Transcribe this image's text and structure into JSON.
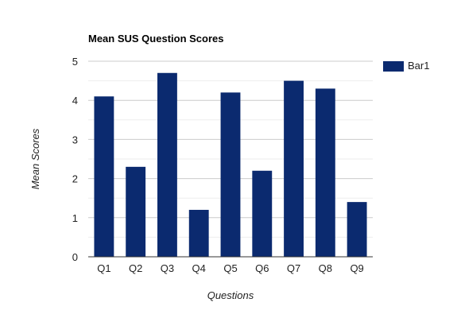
{
  "chart_data": {
    "type": "bar",
    "title": "Mean SUS Question Scores",
    "xlabel": "Questions",
    "ylabel": "Mean Scores",
    "categories": [
      "Q1",
      "Q2",
      "Q3",
      "Q4",
      "Q5",
      "Q6",
      "Q7",
      "Q8",
      "Q9"
    ],
    "series": [
      {
        "name": "Bar1",
        "color": "#0b2a6f",
        "values": [
          4.1,
          2.3,
          4.7,
          1.2,
          4.2,
          2.2,
          4.5,
          4.3,
          1.4
        ]
      }
    ],
    "ylim": [
      0,
      5
    ],
    "yticks": [
      0,
      1,
      2,
      3,
      4,
      5
    ],
    "grid": true,
    "legend_position": "right"
  }
}
